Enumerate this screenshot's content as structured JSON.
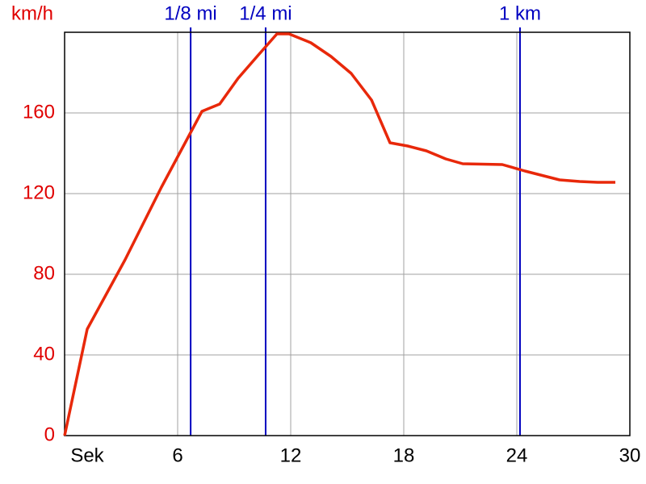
{
  "chart_data": {
    "type": "line",
    "y_label": "km/h",
    "x": [
      0,
      1.2,
      3.21,
      5.14,
      7.29,
      8.23,
      9.21,
      10.29,
      11.27,
      11.91,
      13.07,
      14.14,
      15.21,
      16.29,
      17.27,
      18.21,
      19.2,
      20.23,
      21.13,
      23.23,
      24.43,
      26.27,
      27.34,
      28.29,
      29.23
    ],
    "series": [
      {
        "color": "#e8280a",
        "values": [
          0,
          52.8,
          87.2,
          123.2,
          160.8,
          164.4,
          177.2,
          188.8,
          199.2,
          199.2,
          194.8,
          188,
          179.6,
          166.4,
          145.2,
          143.6,
          141.2,
          137.2,
          134.8,
          134.4,
          131.2,
          126.8,
          126,
          125.6,
          125.6
        ]
      }
    ],
    "xlim": [
      0,
      30
    ],
    "xticks": [
      {
        "value": 0,
        "label": "Sek"
      },
      6,
      12,
      18,
      24,
      30
    ],
    "ylim": [
      0,
      200
    ],
    "yticks": [
      0,
      40,
      80,
      120,
      160
    ],
    "grid": true,
    "y_tick_color": "#e00000",
    "marker_color": "#0000c0",
    "markers": [
      {
        "x": 6.69,
        "label": "1/8 mi"
      },
      {
        "x": 10.67,
        "label": "1/4 mi"
      },
      {
        "x": 24.17,
        "label": "1 km"
      }
    ]
  }
}
